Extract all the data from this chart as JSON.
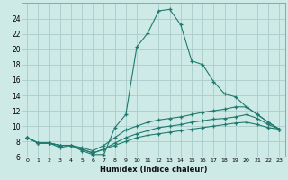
{
  "xlabel": "Humidex (Indice chaleur)",
  "background_color": "#ceeae6",
  "grid_color": "#aaccca",
  "line_color": "#1e7a6e",
  "xlim": [
    -0.5,
    23.5
  ],
  "ylim": [
    6,
    26
  ],
  "yticks": [
    6,
    8,
    10,
    12,
    14,
    16,
    18,
    20,
    22,
    24
  ],
  "xticks": [
    0,
    1,
    2,
    3,
    4,
    5,
    6,
    7,
    8,
    9,
    10,
    11,
    12,
    13,
    14,
    15,
    16,
    17,
    18,
    19,
    20,
    21,
    22,
    23
  ],
  "xtick_labels": [
    "0",
    "1",
    "2",
    "3",
    "4",
    "5",
    "6",
    "7",
    "8",
    "9",
    "10",
    "11",
    "12",
    "13",
    "14",
    "15",
    "16",
    "17",
    "18",
    "19",
    "20",
    "21",
    "22",
    "23"
  ],
  "series": [
    {
      "x": [
        0,
        1,
        2,
        3,
        4,
        5,
        6,
        7,
        8,
        9,
        10,
        11,
        12,
        13,
        14,
        15,
        16,
        17,
        18,
        19,
        20,
        21,
        22,
        23
      ],
      "y": [
        8.5,
        7.8,
        7.8,
        7.2,
        7.5,
        6.8,
        6.3,
        6.3,
        9.8,
        11.5,
        20.3,
        22.1,
        25.0,
        25.2,
        23.2,
        18.5,
        18.0,
        15.8,
        14.2,
        13.8,
        12.5,
        11.5,
        10.5,
        9.6
      ]
    },
    {
      "x": [
        0,
        1,
        2,
        3,
        4,
        5,
        6,
        7,
        8,
        9,
        10,
        11,
        12,
        13,
        14,
        15,
        16,
        17,
        18,
        19,
        20,
        21,
        22,
        23
      ],
      "y": [
        8.5,
        7.8,
        7.8,
        7.5,
        7.5,
        7.2,
        6.8,
        7.5,
        8.5,
        9.5,
        10.0,
        10.5,
        10.8,
        11.0,
        11.2,
        11.5,
        11.8,
        12.0,
        12.2,
        12.5,
        12.5,
        11.5,
        10.5,
        9.6
      ]
    },
    {
      "x": [
        0,
        1,
        2,
        3,
        4,
        5,
        6,
        7,
        8,
        9,
        10,
        11,
        12,
        13,
        14,
        15,
        16,
        17,
        18,
        19,
        20,
        21,
        22,
        23
      ],
      "y": [
        8.5,
        7.8,
        7.8,
        7.5,
        7.5,
        7.0,
        6.5,
        7.0,
        7.8,
        8.5,
        9.0,
        9.4,
        9.8,
        10.0,
        10.2,
        10.5,
        10.7,
        10.9,
        11.0,
        11.2,
        11.5,
        11.0,
        10.2,
        9.6
      ]
    },
    {
      "x": [
        0,
        1,
        2,
        3,
        4,
        5,
        6,
        7,
        8,
        9,
        10,
        11,
        12,
        13,
        14,
        15,
        16,
        17,
        18,
        19,
        20,
        21,
        22,
        23
      ],
      "y": [
        8.5,
        7.8,
        7.8,
        7.5,
        7.5,
        7.0,
        6.5,
        7.0,
        7.5,
        8.0,
        8.5,
        8.8,
        9.0,
        9.2,
        9.4,
        9.6,
        9.8,
        10.0,
        10.2,
        10.4,
        10.5,
        10.2,
        9.8,
        9.6
      ]
    }
  ]
}
